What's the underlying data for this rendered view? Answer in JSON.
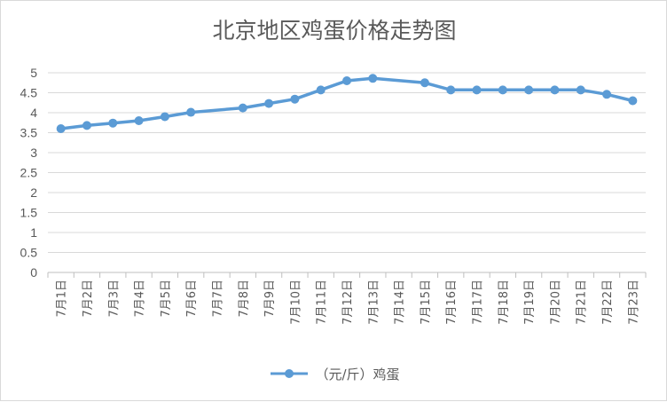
{
  "chart_data": {
    "type": "line",
    "title": "北京地区鸡蛋价格走势图",
    "categories": [
      "7月1日",
      "7月2日",
      "7月3日",
      "7月4日",
      "7月5日",
      "7月6日",
      "7月7日",
      "7月8日",
      "7月9日",
      "7月10日",
      "7月11日",
      "7月12日",
      "7月13日",
      "7月14日",
      "7月15日",
      "7月16日",
      "7月17日",
      "7月18日",
      "7月19日",
      "7月20日",
      "7月21日",
      "7月22日",
      "7月23日"
    ],
    "series": [
      {
        "name": "（元/斤）鸡蛋",
        "color": "#5b9bd5",
        "values": [
          3.6,
          3.68,
          3.74,
          3.8,
          3.9,
          4.01,
          null,
          4.12,
          4.23,
          4.34,
          4.57,
          4.8,
          4.86,
          null,
          4.75,
          4.57,
          4.57,
          4.57,
          4.57,
          4.57,
          4.57,
          4.46,
          4.3
        ]
      }
    ],
    "yticks": [
      "0",
      "0.5",
      "1",
      "1.5",
      "2",
      "2.5",
      "3",
      "3.5",
      "4",
      "4.5",
      "5"
    ],
    "ylim": [
      0,
      5
    ],
    "grid": true,
    "gaps": "connect",
    "legend": "bottom"
  }
}
